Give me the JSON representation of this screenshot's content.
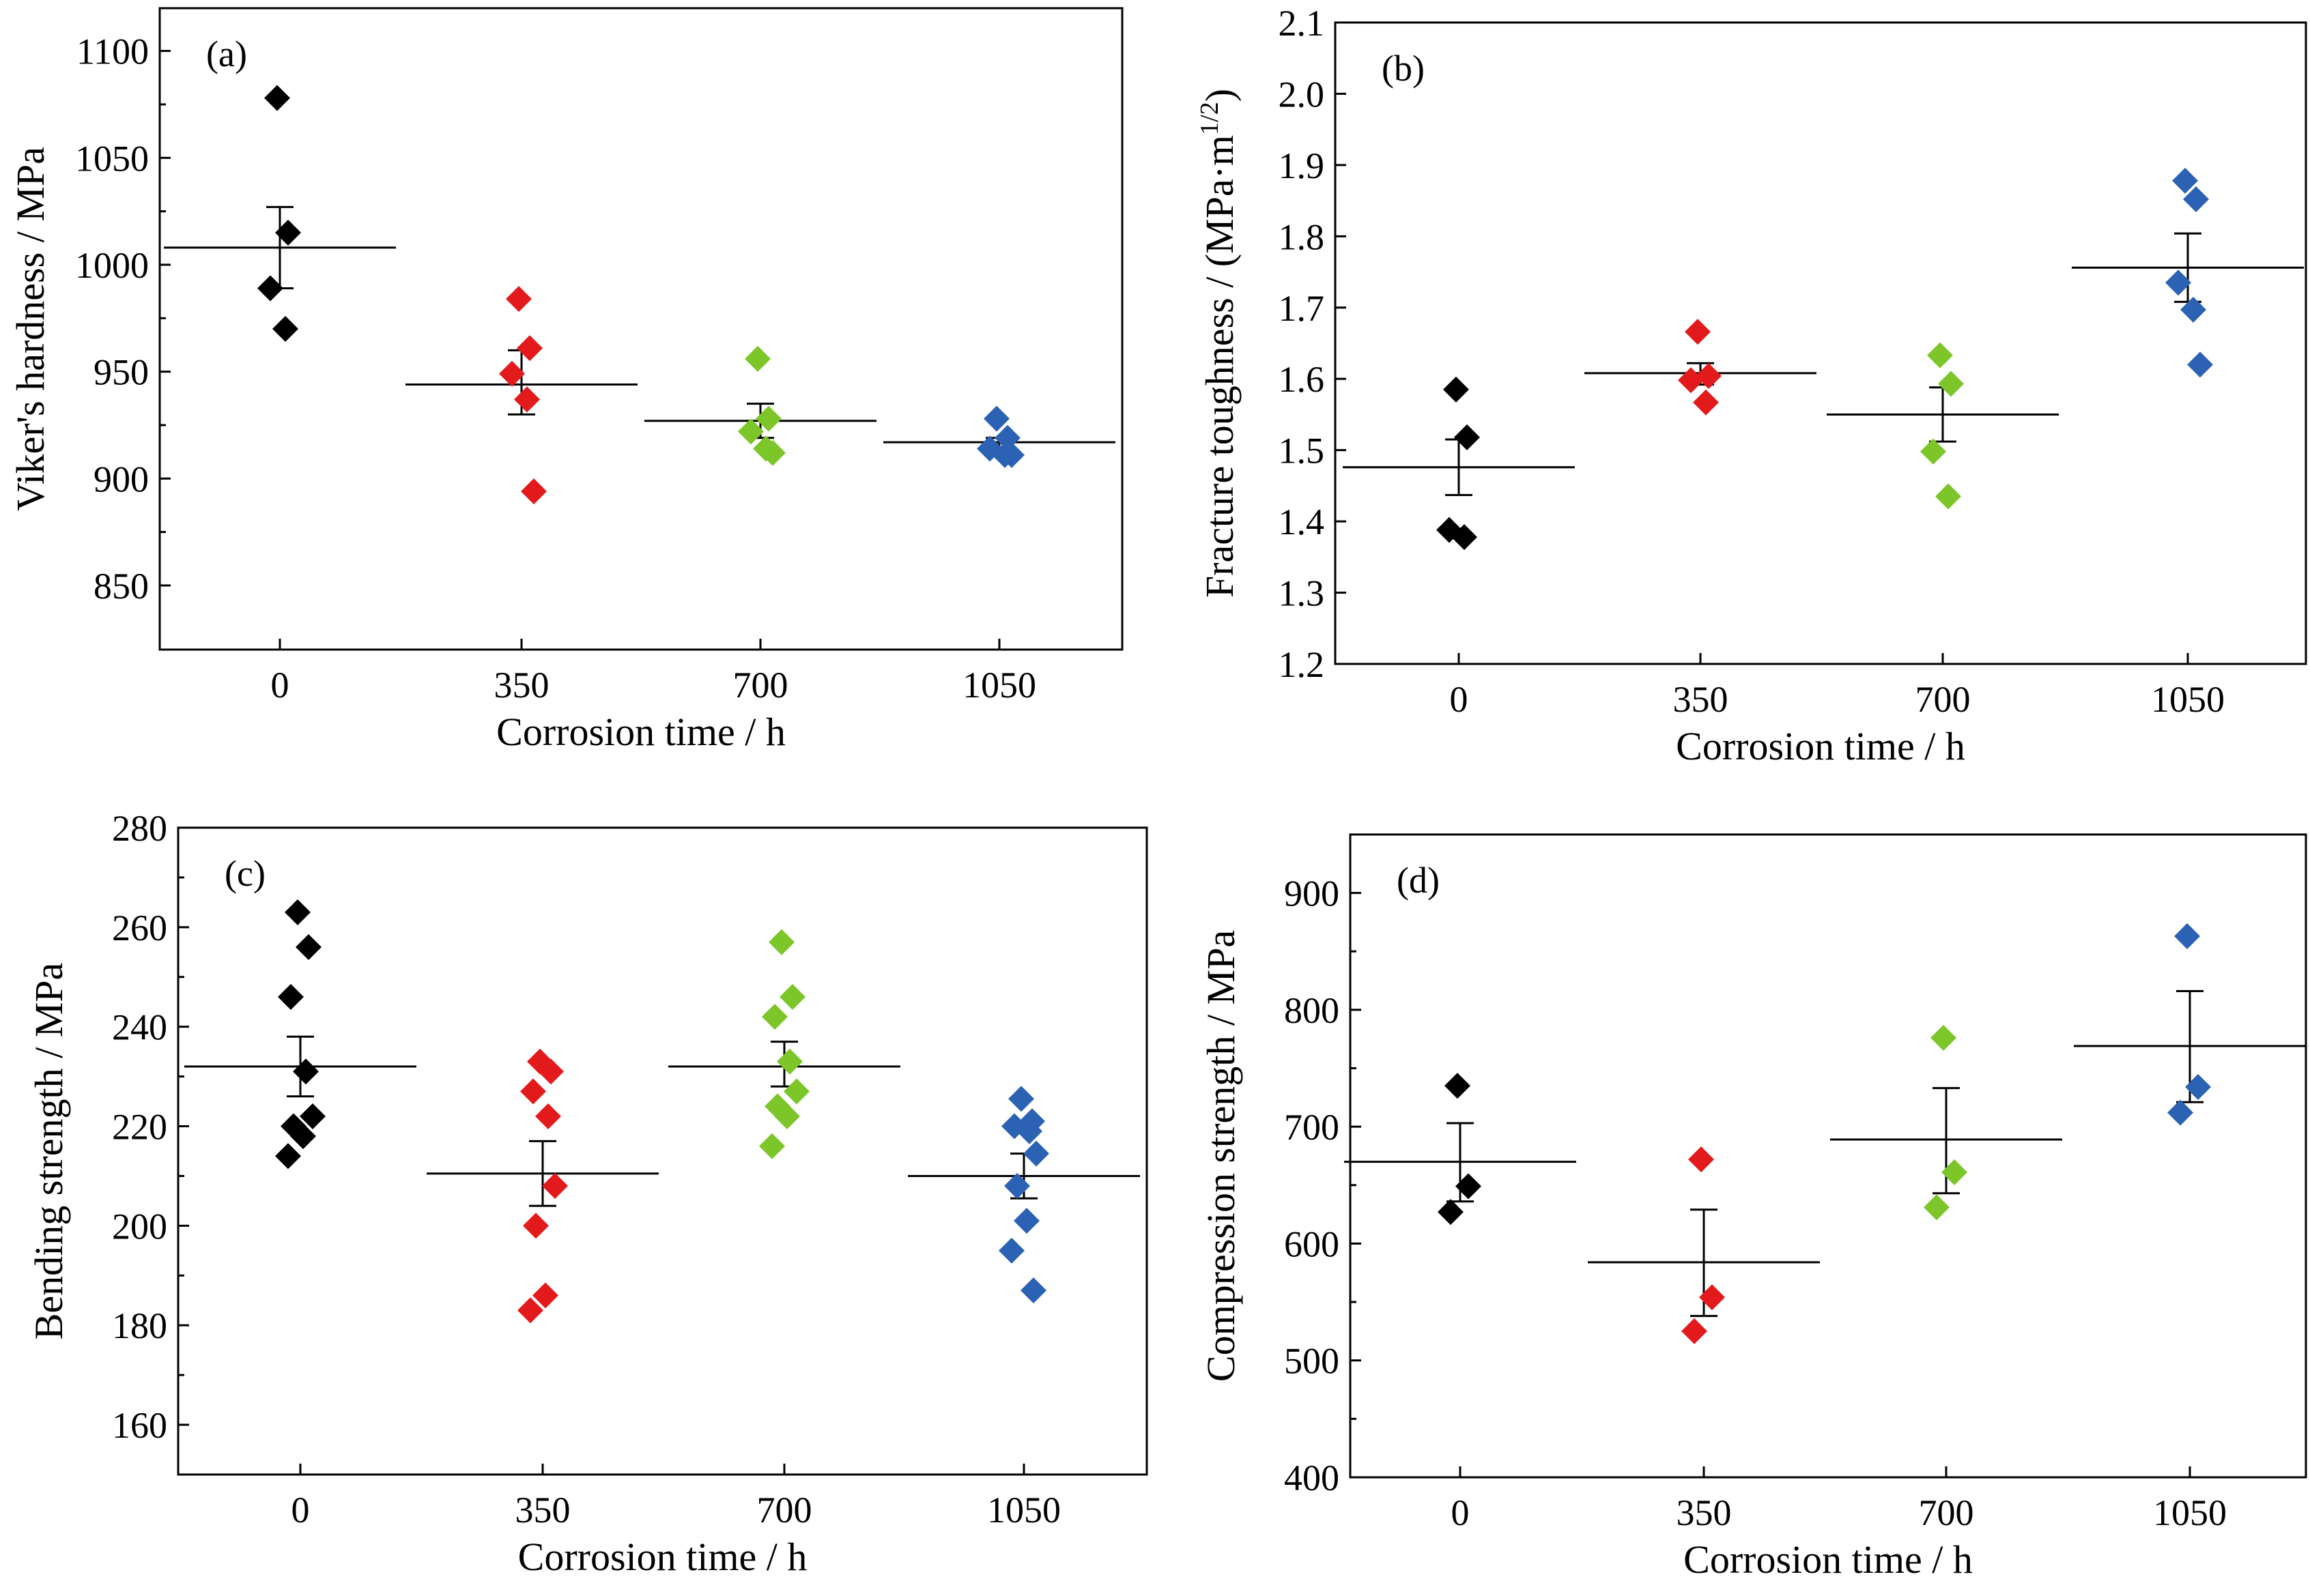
{
  "colors": {
    "0": "#000000",
    "350": "#e31a1c",
    "700": "#7cc62a",
    "1050": "#2b62b3",
    "axis": "#000000",
    "background": "#ffffff"
  },
  "chart_data": [
    {
      "id": "a",
      "type": "scatter",
      "panel_label": "(a)",
      "xlabel": "Corrosion time / h",
      "ylabel": "Viker's hardness / MPa",
      "ylabel_sup": "",
      "ylabel_end": "",
      "categories": [
        "0",
        "350",
        "700",
        "1050"
      ],
      "ylim": [
        820,
        1120
      ],
      "yticks": [
        850,
        900,
        950,
        1000,
        1050,
        1100
      ],
      "yminor": [
        875,
        925,
        975,
        1025,
        1075
      ],
      "ytick_labels": [
        "850",
        "900",
        "950",
        "1000",
        "1050",
        "1100"
      ],
      "series": [
        {
          "category": "0",
          "points": [
            1078,
            1015,
            989,
            970
          ],
          "mean": 1008,
          "err_low": 989,
          "err_high": 1027
        },
        {
          "category": "350",
          "points": [
            984,
            961,
            949,
            937,
            894
          ],
          "mean": 944,
          "err_low": 930,
          "err_high": 960
        },
        {
          "category": "700",
          "points": [
            956,
            928,
            922,
            914,
            912
          ],
          "mean": 927,
          "err_low": 919,
          "err_high": 935
        },
        {
          "category": "1050",
          "points": [
            928,
            919,
            914,
            911,
            911
          ],
          "mean": 917,
          "err_low": 914,
          "err_high": 919
        }
      ]
    },
    {
      "id": "b",
      "type": "scatter",
      "panel_label": "(b)",
      "xlabel": "Corrosion time / h",
      "ylabel": "Fracture toughness / (MPa·m",
      "ylabel_sup": "1/2",
      "ylabel_end": ")",
      "categories": [
        "0",
        "350",
        "700",
        "1050"
      ],
      "ylim": [
        1.2,
        2.1
      ],
      "yticks": [
        1.2,
        1.3,
        1.4,
        1.5,
        1.6,
        1.7,
        1.8,
        1.9,
        2.0,
        2.1
      ],
      "yminor": [],
      "ytick_labels": [
        "1.2",
        "1.3",
        "1.4",
        "1.5",
        "1.6",
        "1.7",
        "1.8",
        "1.9",
        "2.0",
        "2.1"
      ],
      "series": [
        {
          "category": "0",
          "points": [
            1.585,
            1.518,
            1.388,
            1.378
          ],
          "mean": 1.476,
          "err_low": 1.437,
          "err_high": 1.515
        },
        {
          "category": "350",
          "points": [
            1.666,
            1.604,
            1.598,
            1.567
          ],
          "mean": 1.608,
          "err_low": 1.592,
          "err_high": 1.622
        },
        {
          "category": "700",
          "points": [
            1.633,
            1.593,
            1.498,
            1.435
          ],
          "mean": 1.55,
          "err_low": 1.512,
          "err_high": 1.588
        },
        {
          "category": "1050",
          "points": [
            1.878,
            1.852,
            1.735,
            1.697,
            1.62
          ],
          "mean": 1.756,
          "err_low": 1.708,
          "err_high": 1.804
        }
      ]
    },
    {
      "id": "c",
      "type": "scatter",
      "panel_label": "(c)",
      "xlabel": "Corrosion time / h",
      "ylabel": "Bending strength / MPa",
      "ylabel_sup": "",
      "ylabel_end": "",
      "categories": [
        "0",
        "350",
        "700",
        "1050"
      ],
      "ylim": [
        150,
        280
      ],
      "yticks": [
        160,
        180,
        200,
        220,
        240,
        260,
        280
      ],
      "yminor": [
        150,
        170,
        190,
        210,
        230,
        250,
        270
      ],
      "ytick_labels": [
        "160",
        "180",
        "200",
        "220",
        "240",
        "260",
        "280"
      ],
      "series": [
        {
          "category": "0",
          "points": [
            263,
            256,
            246,
            231,
            222,
            220,
            218,
            214
          ],
          "mean": 232,
          "err_low": 226,
          "err_high": 238
        },
        {
          "category": "350",
          "points": [
            233,
            231,
            227,
            222,
            208,
            200,
            186,
            183
          ],
          "mean": 210.5,
          "err_low": 204,
          "err_high": 217
        },
        {
          "category": "700",
          "points": [
            257,
            246,
            242,
            233,
            227,
            224,
            222,
            216
          ],
          "mean": 232,
          "err_low": 228,
          "err_high": 237
        },
        {
          "category": "1050",
          "points": [
            225.5,
            221,
            220,
            219,
            214.5,
            208,
            201,
            195,
            187
          ],
          "mean": 210,
          "err_low": 205.5,
          "err_high": 214.5
        }
      ]
    },
    {
      "id": "d",
      "type": "scatter",
      "panel_label": "(d)",
      "xlabel": "Corrosion time / h",
      "ylabel": "Compression strength / MPa",
      "ylabel_sup": "",
      "ylabel_end": "",
      "categories": [
        "0",
        "350",
        "700",
        "1050"
      ],
      "ylim": [
        400,
        950
      ],
      "yticks": [
        400,
        500,
        600,
        700,
        800,
        900
      ],
      "yminor": [
        450,
        550,
        650,
        750,
        850
      ],
      "ytick_labels": [
        "400",
        "500",
        "600",
        "700",
        "800",
        "900"
      ],
      "series": [
        {
          "category": "0",
          "points": [
            735,
            649,
            627
          ],
          "mean": 670,
          "err_low": 636,
          "err_high": 703
        },
        {
          "category": "350",
          "points": [
            672,
            554,
            525
          ],
          "mean": 584,
          "err_low": 538,
          "err_high": 629
        },
        {
          "category": "700",
          "points": [
            776,
            661,
            631
          ],
          "mean": 689,
          "err_low": 643,
          "err_high": 733
        },
        {
          "category": "1050",
          "points": [
            863,
            734,
            712
          ],
          "mean": 769,
          "err_low": 721,
          "err_high": 816
        }
      ]
    }
  ]
}
